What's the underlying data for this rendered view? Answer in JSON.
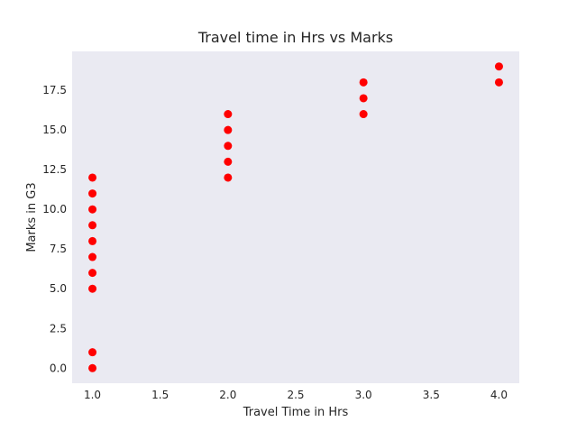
{
  "chart_data": {
    "type": "scatter",
    "title": "Travel time in Hrs vs Marks",
    "xlabel": "Travel Time in Hrs",
    "ylabel": "Marks in G3",
    "xlim": [
      0.85,
      4.15
    ],
    "ylim": [
      -0.95,
      19.95
    ],
    "xticks": [
      1.0,
      1.5,
      2.0,
      2.5,
      3.0,
      3.5,
      4.0
    ],
    "xtick_labels": [
      "1.0",
      "1.5",
      "2.0",
      "2.5",
      "3.0",
      "3.5",
      "4.0"
    ],
    "yticks": [
      0.0,
      2.5,
      5.0,
      7.5,
      10.0,
      12.5,
      15.0,
      17.5
    ],
    "ytick_labels": [
      "0.0",
      "2.5",
      "5.0",
      "7.5",
      "10.0",
      "12.5",
      "15.0",
      "17.5"
    ],
    "grid": false,
    "background": "#eaeaf2",
    "marker_color": "#ff0000",
    "points": [
      {
        "x": 1,
        "y": 0
      },
      {
        "x": 1,
        "y": 1
      },
      {
        "x": 1,
        "y": 5
      },
      {
        "x": 1,
        "y": 6
      },
      {
        "x": 1,
        "y": 7
      },
      {
        "x": 1,
        "y": 8
      },
      {
        "x": 1,
        "y": 9
      },
      {
        "x": 1,
        "y": 10
      },
      {
        "x": 1,
        "y": 11
      },
      {
        "x": 1,
        "y": 12
      },
      {
        "x": 2,
        "y": 12
      },
      {
        "x": 2,
        "y": 13
      },
      {
        "x": 2,
        "y": 14
      },
      {
        "x": 2,
        "y": 15
      },
      {
        "x": 2,
        "y": 16
      },
      {
        "x": 3,
        "y": 16
      },
      {
        "x": 3,
        "y": 17
      },
      {
        "x": 3,
        "y": 18
      },
      {
        "x": 4,
        "y": 18
      },
      {
        "x": 4,
        "y": 19
      }
    ]
  }
}
